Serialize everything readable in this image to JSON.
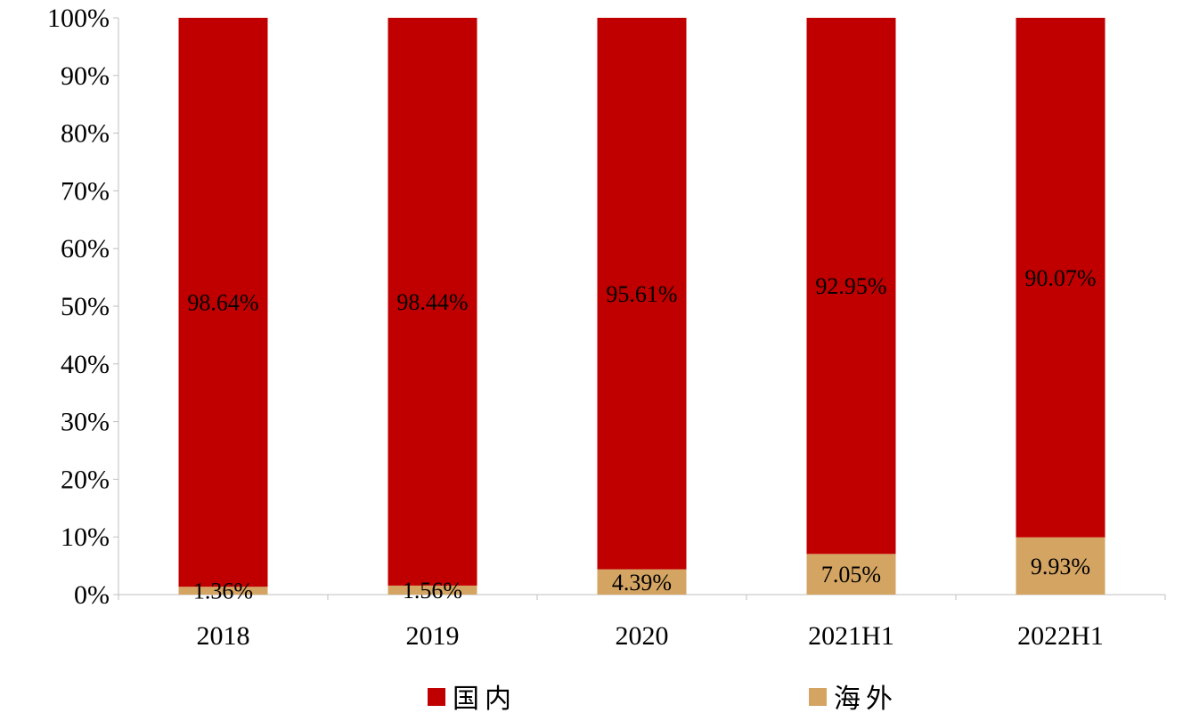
{
  "chart_data": {
    "type": "bar",
    "stacked": true,
    "categories": [
      "2018",
      "2019",
      "2020",
      "2021H1",
      "2022H1"
    ],
    "series": [
      {
        "name": "海外",
        "color": "#D4A463",
        "values": [
          1.36,
          1.56,
          4.39,
          7.05,
          9.93
        ],
        "labels": [
          "1.36%",
          "1.56%",
          "4.39%",
          "7.05%",
          "9.93%"
        ]
      },
      {
        "name": "国内",
        "color": "#C00000",
        "values": [
          98.64,
          98.44,
          95.61,
          92.95,
          90.07
        ],
        "labels": [
          "98.64%",
          "98.44%",
          "95.61%",
          "92.95%",
          "90.07%"
        ]
      }
    ],
    "yticks": [
      "0%",
      "10%",
      "20%",
      "30%",
      "40%",
      "50%",
      "60%",
      "70%",
      "80%",
      "90%",
      "100%"
    ],
    "ylim": [
      0,
      100
    ],
    "grid": false,
    "legend_position": "bottom",
    "legend_order": [
      "国内",
      "海外"
    ]
  }
}
